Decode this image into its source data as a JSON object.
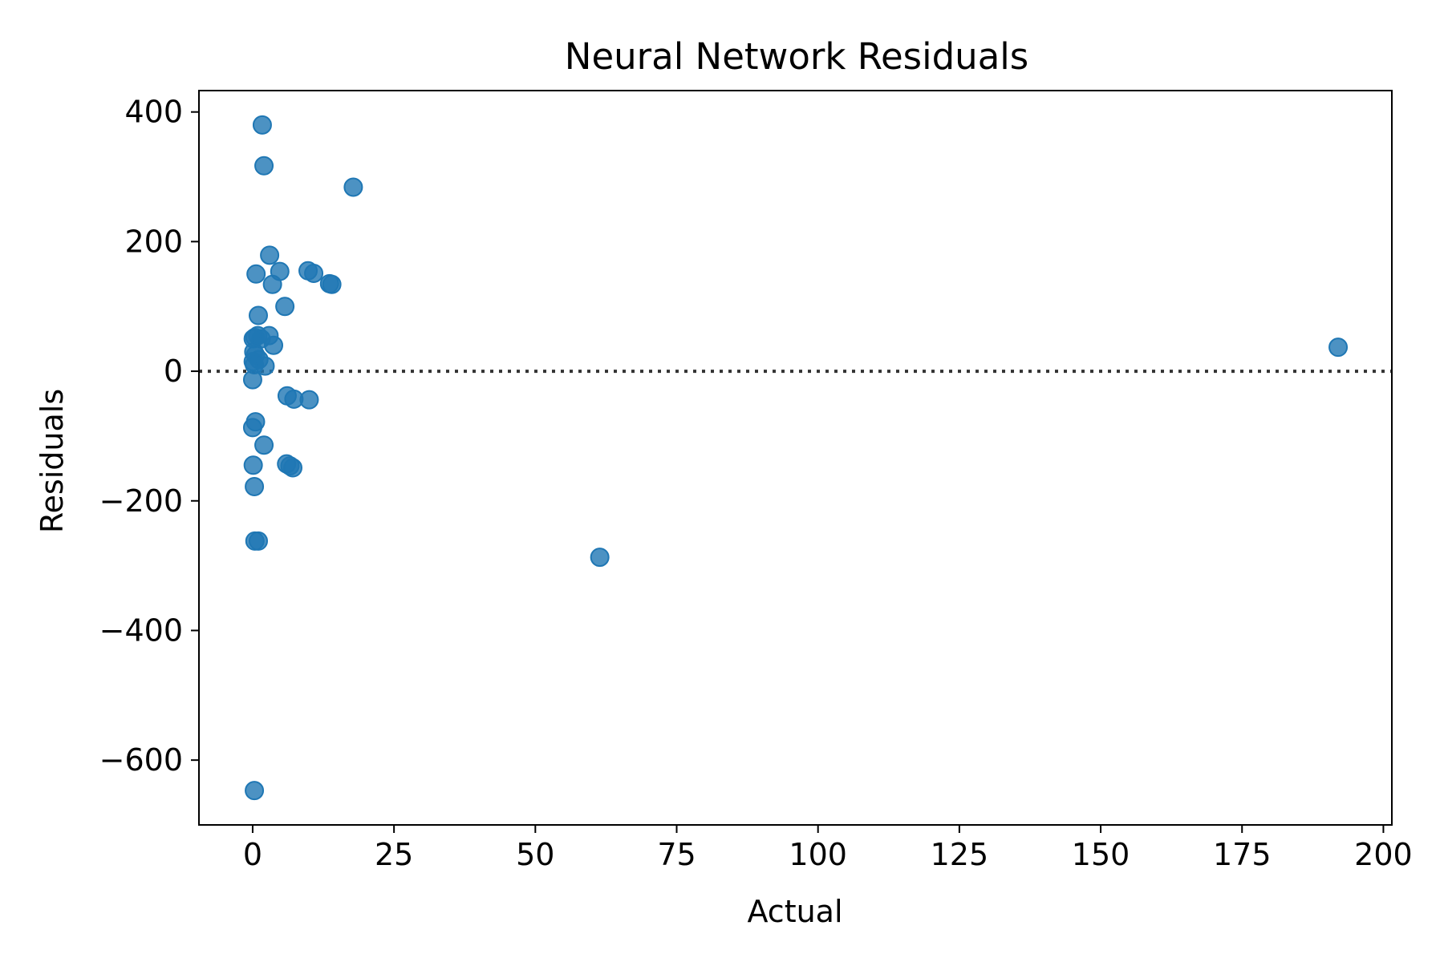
{
  "chart_data": {
    "type": "scatter",
    "title": "Neural Network Residuals",
    "xlabel": "Actual",
    "ylabel": "Residuals",
    "xlim": [
      -9.5,
      201.5
    ],
    "ylim": [
      -700,
      433
    ],
    "x_ticks": [
      0,
      25,
      50,
      75,
      100,
      125,
      150,
      175,
      200
    ],
    "x_tick_labels": [
      "0",
      "25",
      "50",
      "75",
      "100",
      "125",
      "150",
      "175",
      "200"
    ],
    "y_ticks": [
      -600,
      -400,
      -200,
      0,
      200,
      400
    ],
    "y_tick_labels": [
      "−600",
      "−400",
      "−200",
      "0",
      "200",
      "400"
    ],
    "reference_line": {
      "y": 0,
      "style": "dotted",
      "color": "#333333"
    },
    "point_color": "#1f77b4",
    "series": [
      {
        "points": [
          {
            "x": 1.7,
            "y": 380
          },
          {
            "x": 2.0,
            "y": 317
          },
          {
            "x": 17.8,
            "y": 284
          },
          {
            "x": 3.0,
            "y": 179
          },
          {
            "x": 0.6,
            "y": 150
          },
          {
            "x": 4.8,
            "y": 154
          },
          {
            "x": 9.8,
            "y": 155
          },
          {
            "x": 10.8,
            "y": 151
          },
          {
            "x": 13.6,
            "y": 135
          },
          {
            "x": 14.0,
            "y": 134
          },
          {
            "x": 3.5,
            "y": 134
          },
          {
            "x": 5.7,
            "y": 100
          },
          {
            "x": 1.0,
            "y": 86
          },
          {
            "x": 0.1,
            "y": 50
          },
          {
            "x": 0.4,
            "y": 52
          },
          {
            "x": 0.9,
            "y": 55
          },
          {
            "x": 1.5,
            "y": 50
          },
          {
            "x": 2.9,
            "y": 55
          },
          {
            "x": 3.7,
            "y": 40
          },
          {
            "x": 0.2,
            "y": 30
          },
          {
            "x": 0.5,
            "y": 25
          },
          {
            "x": 0.1,
            "y": 15
          },
          {
            "x": 0.3,
            "y": 10
          },
          {
            "x": 1.1,
            "y": 18
          },
          {
            "x": 2.2,
            "y": 8
          },
          {
            "x": 0.0,
            "y": -13
          },
          {
            "x": 6.1,
            "y": -38
          },
          {
            "x": 7.3,
            "y": -43
          },
          {
            "x": 10.0,
            "y": -44
          },
          {
            "x": 0.5,
            "y": -78
          },
          {
            "x": 0.0,
            "y": -87
          },
          {
            "x": 2.0,
            "y": -114
          },
          {
            "x": 6.0,
            "y": -143
          },
          {
            "x": 6.6,
            "y": -146
          },
          {
            "x": 7.1,
            "y": -149
          },
          {
            "x": 0.1,
            "y": -145
          },
          {
            "x": 0.3,
            "y": -178
          },
          {
            "x": 0.4,
            "y": -262
          },
          {
            "x": 1.0,
            "y": -262
          },
          {
            "x": 61.4,
            "y": -287
          },
          {
            "x": 0.3,
            "y": -647
          },
          {
            "x": 192.0,
            "y": 37
          }
        ]
      }
    ]
  }
}
